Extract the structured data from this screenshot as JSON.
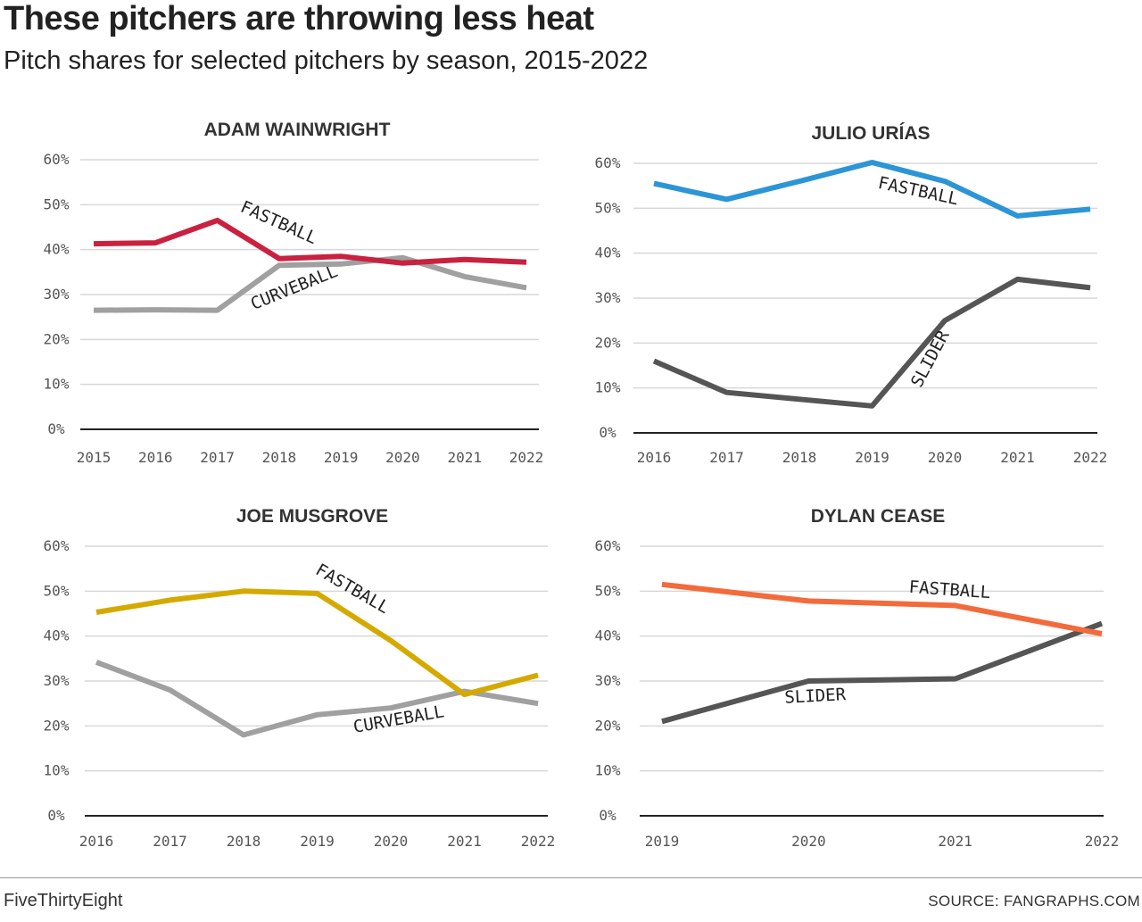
{
  "header": {
    "title": "These pitchers are throwing less heat",
    "subtitle": "Pitch shares for selected pitchers by season, 2015-2022"
  },
  "footer": {
    "brand": "FiveThirtyEight",
    "source": "SOURCE: FANGRAPHS.COM"
  },
  "colors": {
    "wainwright_fastball": "#c9213f",
    "curveball_gray": "#a0a0a0",
    "urias_fastball": "#2b95d6",
    "slider_dark": "#555555",
    "musgrove_fastball": "#d4aa00",
    "cease_fastball": "#f36b3b",
    "grid": "#d7d7d7"
  },
  "chart_data": [
    {
      "type": "line",
      "title": "ADAM WAINWRIGHT",
      "x": [
        "2015",
        "2016",
        "2017",
        "2018",
        "2019",
        "2020",
        "2021",
        "2022"
      ],
      "ylim": [
        0,
        60
      ],
      "yticks": [
        "0%",
        "10%",
        "20%",
        "30%",
        "40%",
        "50%",
        "60%"
      ],
      "series": [
        {
          "name": "FASTBALL",
          "color": "#c9213f",
          "values": [
            41.3,
            41.5,
            46.5,
            38,
            38.5,
            37,
            37.8,
            37.2
          ]
        },
        {
          "name": "CURVEBALL",
          "color": "#a0a0a0",
          "values": [
            26.5,
            26.6,
            26.5,
            36.5,
            36.8,
            38.2,
            34,
            31.5
          ]
        }
      ]
    },
    {
      "type": "line",
      "title": "JULIO URÍAS",
      "x": [
        "2016",
        "2017",
        "2018",
        "2019",
        "2020",
        "2021",
        "2022"
      ],
      "ylim": [
        0,
        60
      ],
      "yticks": [
        "0%",
        "10%",
        "20%",
        "30%",
        "40%",
        "50%",
        "60%"
      ],
      "series": [
        {
          "name": "FASTBALL",
          "color": "#2b95d6",
          "values": [
            55.5,
            52,
            56,
            60.2,
            56,
            48.3,
            49.8
          ]
        },
        {
          "name": "SLIDER",
          "color": "#555555",
          "values": [
            16,
            9,
            7.5,
            6,
            25,
            34.2,
            32.3
          ]
        }
      ]
    },
    {
      "type": "line",
      "title": "JOE MUSGROVE",
      "x": [
        "2016",
        "2017",
        "2018",
        "2019",
        "2020",
        "2021",
        "2022"
      ],
      "ylim": [
        0,
        60
      ],
      "yticks": [
        "0%",
        "10%",
        "20%",
        "30%",
        "40%",
        "50%",
        "60%"
      ],
      "series": [
        {
          "name": "FASTBALL",
          "color": "#d4aa00",
          "values": [
            45.3,
            48,
            50,
            49.5,
            39,
            27,
            31.3
          ]
        },
        {
          "name": "CURVEBALL",
          "color": "#a0a0a0",
          "values": [
            34.2,
            28,
            18,
            22.5,
            24,
            27.7,
            25
          ]
        }
      ]
    },
    {
      "type": "line",
      "title": "DYLAN CEASE",
      "x": [
        "2019",
        "2020",
        "2021",
        "2022"
      ],
      "ylim": [
        0,
        60
      ],
      "yticks": [
        "0%",
        "10%",
        "20%",
        "30%",
        "40%",
        "50%",
        "60%"
      ],
      "series": [
        {
          "name": "FASTBALL",
          "color": "#f36b3b",
          "values": [
            51.5,
            47.8,
            46.8,
            40.5
          ]
        },
        {
          "name": "SLIDER",
          "color": "#555555",
          "values": [
            21,
            30,
            30.5,
            42.8
          ]
        }
      ]
    }
  ]
}
